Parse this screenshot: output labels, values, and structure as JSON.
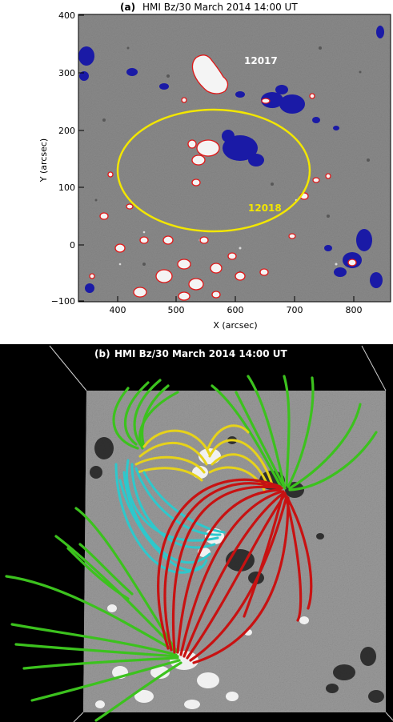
{
  "panel_a": {
    "label": "(a)",
    "title": "HMI Bz/30 March 2014 14:00 UT",
    "xlabel": "X (arcsec)",
    "ylabel": "Y (arcsec)",
    "x_ticks": [
      "400",
      "500",
      "600",
      "700",
      "800"
    ],
    "y_ticks": [
      "400",
      "300",
      "200",
      "100",
      "0",
      "−100"
    ],
    "annotations": [
      {
        "text": "12017",
        "color": "#ffffff"
      },
      {
        "text": "12018",
        "color": "#f2e600"
      }
    ],
    "colors": {
      "background": "#8a8a8a",
      "negative_polarity": "#1a1aa6",
      "positive_contour": "#e01818",
      "ellipse": "#f2e600"
    }
  },
  "panel_b": {
    "label": "(b)",
    "title": "HMI Bz/30 March 2014 14:00 UT",
    "colors": {
      "green_lines": "#3cc21e",
      "yellow_lines": "#e6d21a",
      "cyan_lines": "#2ec8cc",
      "red_lines": "#c81212"
    }
  }
}
